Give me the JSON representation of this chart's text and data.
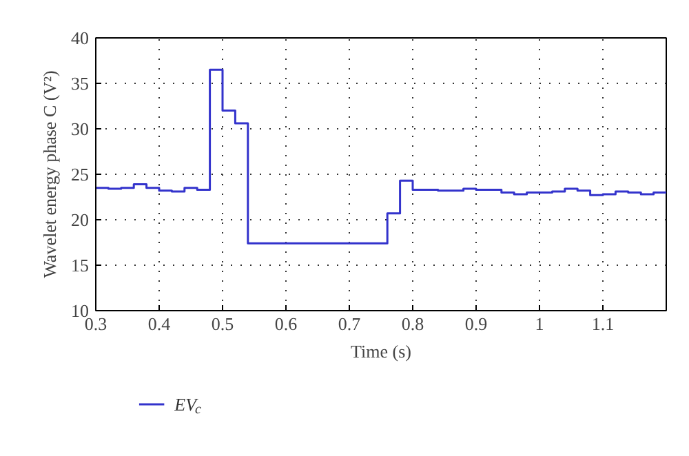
{
  "chart_data": {
    "type": "step",
    "xlabel": "Time (s)",
    "ylabel": "Wavelet energy phase C (V²)",
    "x": [
      0.3,
      0.32,
      0.34,
      0.36,
      0.38,
      0.4,
      0.42,
      0.44,
      0.46,
      0.48,
      0.5,
      0.52,
      0.54,
      0.76,
      0.78,
      0.8,
      0.84,
      0.88,
      0.9,
      0.94,
      0.96,
      0.98,
      1.02,
      1.04,
      1.06,
      1.08,
      1.1,
      1.12,
      1.14,
      1.16,
      1.18,
      1.2
    ],
    "series": [
      {
        "name": "EV$_{c}$",
        "color": "#3333cc",
        "values": [
          23.5,
          23.4,
          23.5,
          23.9,
          23.5,
          23.2,
          23.1,
          23.5,
          23.3,
          36.5,
          32.0,
          30.6,
          17.4,
          20.7,
          24.3,
          23.3,
          23.2,
          23.4,
          23.3,
          23.0,
          22.8,
          23.0,
          23.1,
          23.4,
          23.2,
          22.7,
          22.8,
          23.1,
          23.0,
          22.8,
          23.0,
          23.0
        ]
      }
    ],
    "xlim": [
      0.3,
      1.2
    ],
    "xticks": [
      0.3,
      0.4,
      0.5,
      0.6,
      0.7,
      0.8,
      0.9,
      {
        "value": 1.0,
        "label": "1"
      },
      1.1
    ],
    "ylim": [
      10,
      40
    ],
    "yticks": [
      10,
      15,
      20,
      25,
      30,
      35,
      40
    ],
    "grid": true,
    "legend": "bottom left",
    "line_style": "solid"
  }
}
